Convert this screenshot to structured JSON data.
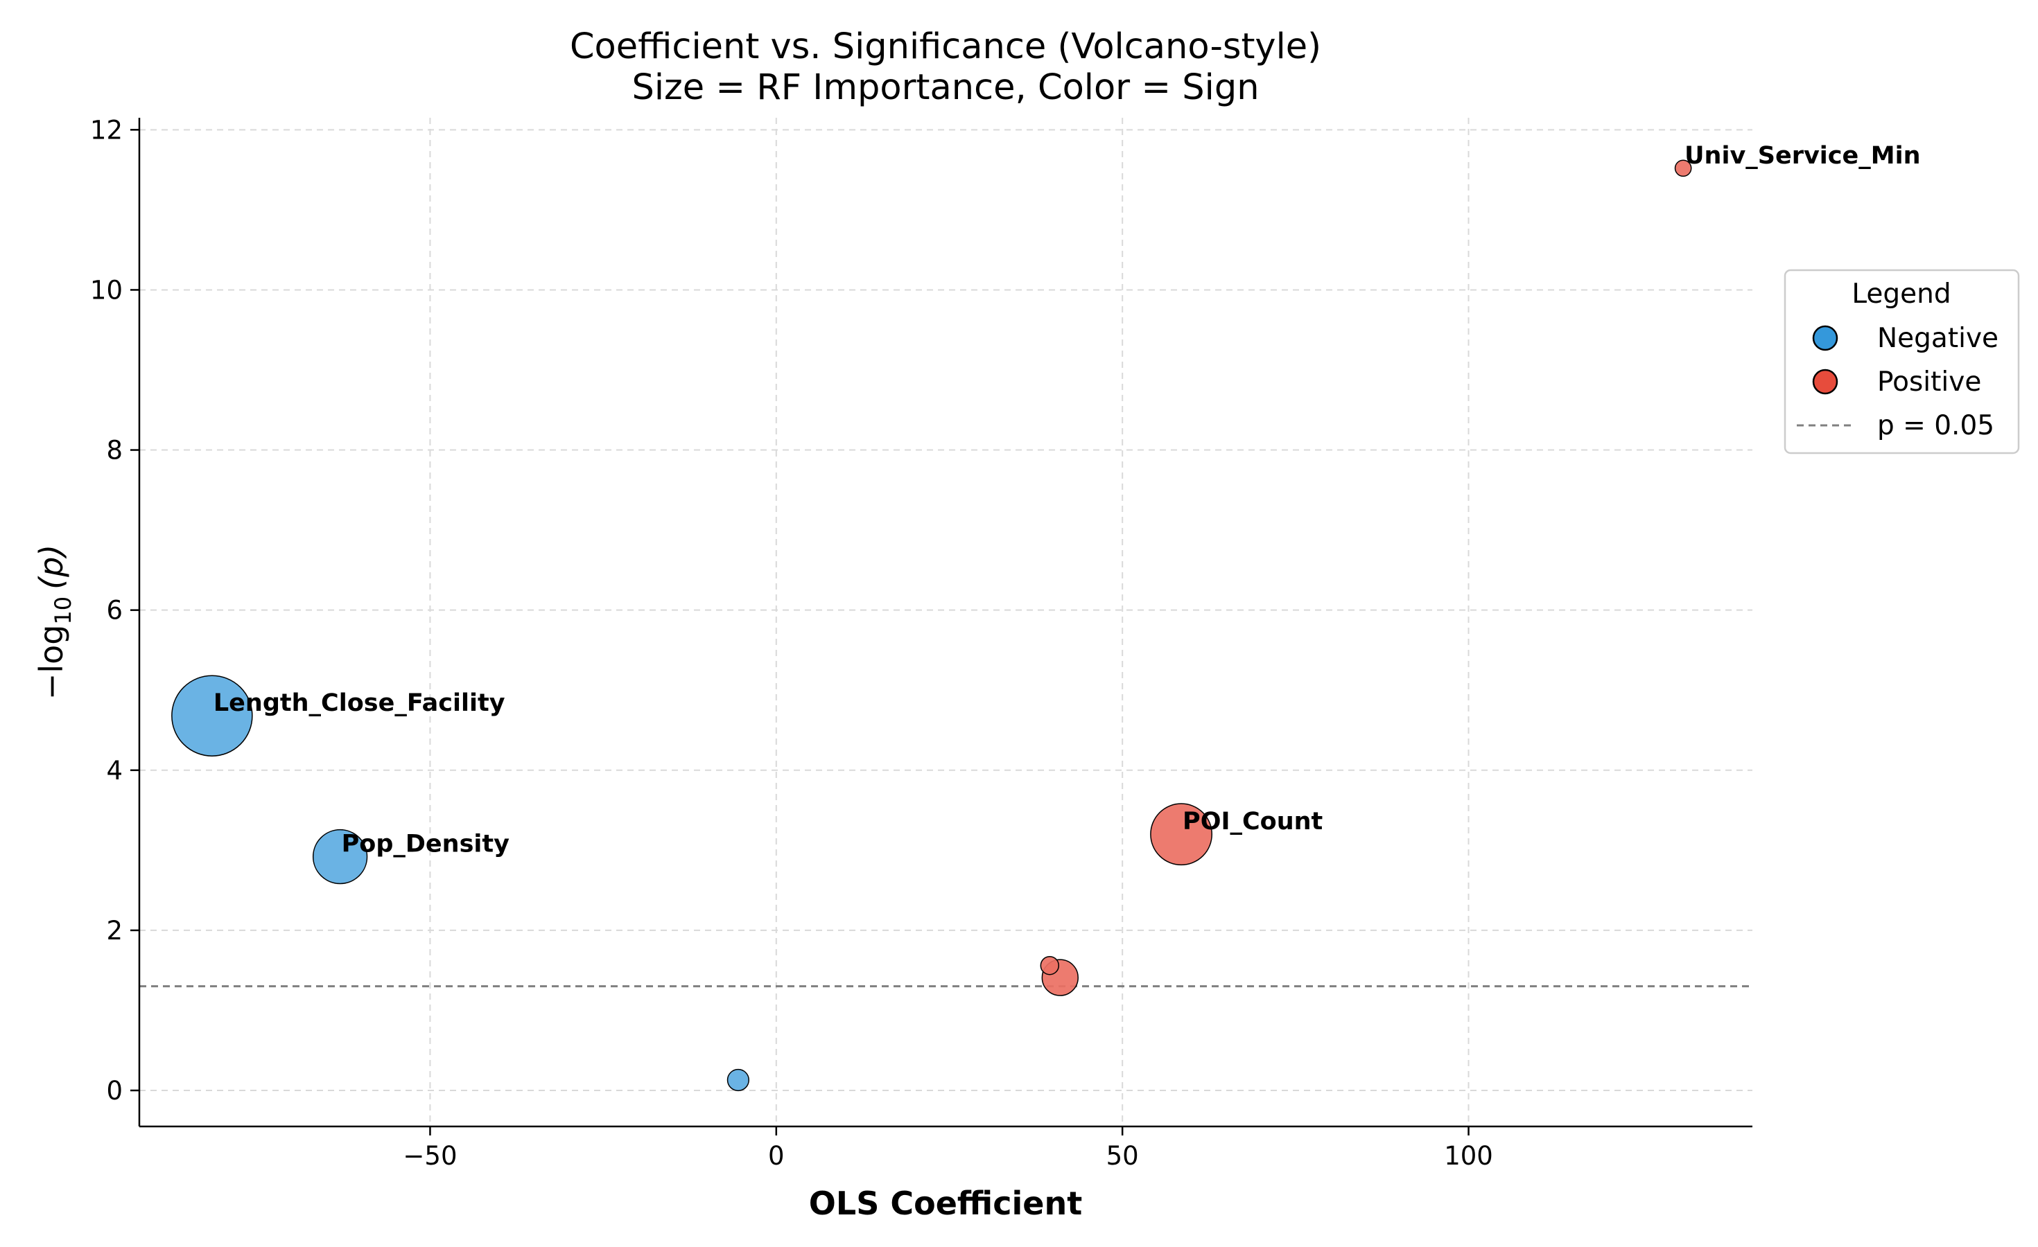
{
  "chart_data": {
    "type": "scatter",
    "title": "Coefficient vs. Significance (Volcano-style)",
    "subtitle": "Size = RF Importance, Color = Sign",
    "xlabel": "OLS Coefficient",
    "ylabel_main": "−log",
    "ylabel_sub": "10",
    "ylabel_arg": "(p)",
    "xlim": [
      -92,
      141
    ],
    "ylim": [
      -0.45,
      12.15
    ],
    "xticks": [
      {
        "value": -50,
        "label": "−50"
      },
      {
        "value": 0,
        "label": "0"
      },
      {
        "value": 50,
        "label": "50"
      },
      {
        "value": 100,
        "label": "100"
      }
    ],
    "yticks": [
      {
        "value": 0,
        "label": "0"
      },
      {
        "value": 2,
        "label": "2"
      },
      {
        "value": 4,
        "label": "4"
      },
      {
        "value": 6,
        "label": "6"
      },
      {
        "value": 8,
        "label": "8"
      },
      {
        "value": 10,
        "label": "10"
      },
      {
        "value": 12,
        "label": "12"
      }
    ],
    "grid": true,
    "threshold": {
      "value": 1.30103,
      "label": "p = 0.05",
      "color": "#808080"
    },
    "colors": {
      "Negative": "#5dade2",
      "Positive": "#ec7063",
      "negative_legend": "#3498db",
      "positive_legend": "#e74c3c"
    },
    "legend": {
      "title": "Legend",
      "placement": "center-right, outside plot",
      "entries": [
        {
          "label": "Negative",
          "kind": "marker",
          "sign": "Negative"
        },
        {
          "label": "Positive",
          "kind": "marker",
          "sign": "Positive"
        },
        {
          "label": "p = 0.05",
          "kind": "dashed-line"
        }
      ]
    },
    "points": [
      {
        "label": "Length_Close_Facility",
        "x": -81.5,
        "y": 4.68,
        "sign": "Negative",
        "rel_size": 1.0
      },
      {
        "label": "Pop_Density",
        "x": -63,
        "y": 2.92,
        "sign": "Negative",
        "rel_size": 0.45
      },
      {
        "label": "",
        "x": -5.5,
        "y": 0.13,
        "sign": "Negative",
        "rel_size": 0.07
      },
      {
        "label": "POI_Count",
        "x": 58.5,
        "y": 3.2,
        "sign": "Positive",
        "rel_size": 0.58
      },
      {
        "label": "",
        "x": 41,
        "y": 1.41,
        "sign": "Positive",
        "rel_size": 0.2
      },
      {
        "label": "",
        "x": 39.5,
        "y": 1.56,
        "sign": "Positive",
        "rel_size": 0.05
      },
      {
        "label": "Univ_Service_Min",
        "x": 131,
        "y": 11.52,
        "sign": "Positive",
        "rel_size": 0.04
      }
    ]
  }
}
